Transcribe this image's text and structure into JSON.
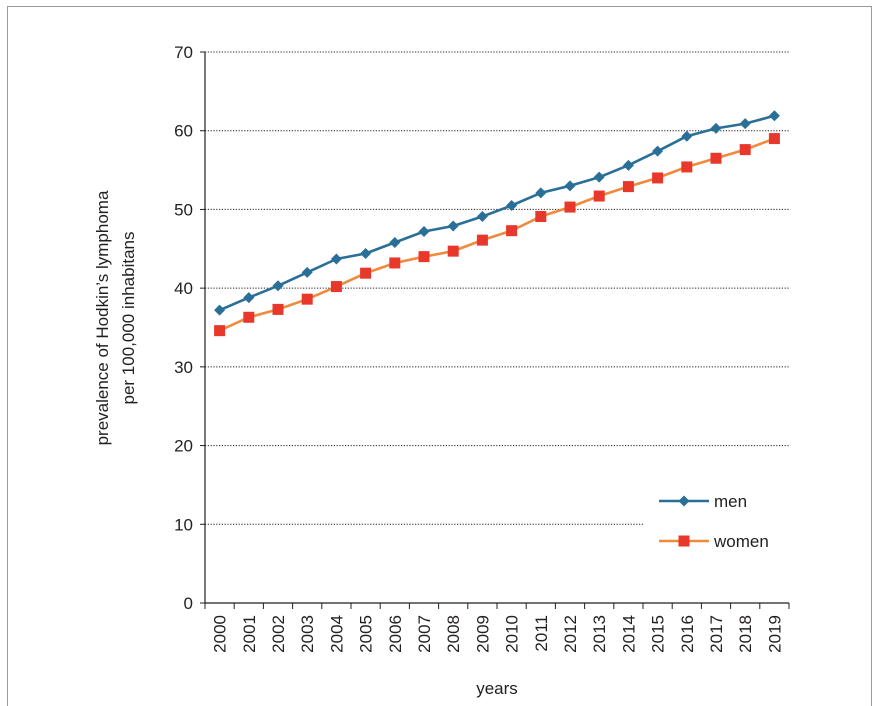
{
  "chart_data": {
    "type": "line",
    "title": "",
    "xlabel": "years",
    "ylabel": "prevalence of Hodkin’s lymphoma",
    "ylabel_line2": "per 100,000 inhabitans",
    "ylim": [
      0,
      70
    ],
    "yticks": [
      "0",
      "10",
      "20",
      "30",
      "40",
      "50",
      "60",
      "70"
    ],
    "x": [
      "2000",
      "2001",
      "2002",
      "2003",
      "2004",
      "2005",
      "2006",
      "2007",
      "2008",
      "2009",
      "2010",
      "2011",
      "2012",
      "2013",
      "2014",
      "2015",
      "2016",
      "2017",
      "2018",
      "2019"
    ],
    "series": [
      {
        "name": "men",
        "color": "#2a6f97",
        "marker": "diamond",
        "values": [
          37.2,
          38.8,
          40.3,
          42.0,
          43.7,
          44.4,
          45.8,
          47.2,
          47.9,
          49.1,
          50.5,
          52.1,
          53.0,
          54.1,
          55.6,
          57.4,
          59.3,
          60.3,
          60.9,
          61.9
        ]
      },
      {
        "name": "women",
        "color": "#f08a3c",
        "marker_color": "#e8372b",
        "marker": "square",
        "values": [
          34.6,
          36.3,
          37.3,
          38.6,
          40.2,
          41.9,
          43.2,
          44.0,
          44.7,
          46.1,
          47.3,
          49.1,
          50.3,
          51.7,
          52.9,
          54.0,
          55.4,
          56.5,
          57.6,
          59.0
        ]
      }
    ],
    "grid": "horizontal dotted",
    "legend_position": "bottom-right"
  }
}
